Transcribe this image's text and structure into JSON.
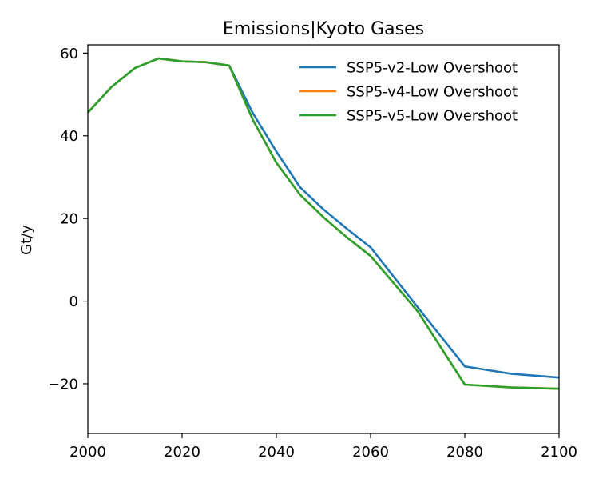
{
  "chart_data": {
    "type": "line",
    "title": "Emissions|Kyoto Gases",
    "xlabel": "",
    "ylabel": "Gt/y",
    "xlim": [
      2000,
      2100
    ],
    "ylim": [
      -32,
      62
    ],
    "xticks": [
      2000,
      2020,
      2040,
      2060,
      2080,
      2100
    ],
    "yticks": [
      -20,
      0,
      20,
      40,
      60
    ],
    "xtick_labels": [
      "2000",
      "2020",
      "2040",
      "2060",
      "2080",
      "2100"
    ],
    "ytick_labels": [
      "−20",
      "0",
      "20",
      "40",
      "60"
    ],
    "grid": false,
    "legend_position": "top-right",
    "x": [
      2000,
      2005,
      2010,
      2015,
      2020,
      2025,
      2030,
      2035,
      2040,
      2045,
      2050,
      2055,
      2060,
      2070,
      2080,
      2090,
      2100
    ],
    "series": [
      {
        "name": "SSP5-v2-Low Overshoot",
        "color": "#1f77b4",
        "values": [
          45.6,
          51.8,
          56.4,
          58.7,
          58.0,
          57.8,
          57.0,
          45.5,
          36.2,
          27.6,
          22.2,
          17.5,
          13.0,
          -1.5,
          -15.8,
          -17.6,
          -18.5
        ]
      },
      {
        "name": "SSP5-v4-Low Overshoot",
        "color": "#ff7f0e",
        "values": [
          45.6,
          51.8,
          56.4,
          58.7,
          58.0,
          57.8,
          57.0,
          43.9,
          33.5,
          25.8,
          20.3,
          15.4,
          10.9,
          -2.5,
          -20.2,
          -20.9,
          -21.2
        ]
      },
      {
        "name": "SSP5-v5-Low Overshoot",
        "color": "#2ca02c",
        "values": [
          45.6,
          51.8,
          56.4,
          58.7,
          58.0,
          57.8,
          57.0,
          43.9,
          33.5,
          25.8,
          20.3,
          15.4,
          10.9,
          -2.5,
          -20.2,
          -20.9,
          -21.2
        ]
      }
    ]
  }
}
